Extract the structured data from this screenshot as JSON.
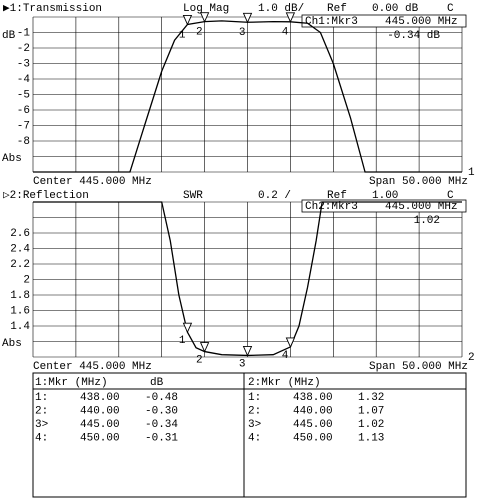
{
  "chart_data": [
    {
      "type": "line",
      "channel": "▶1:Transmission",
      "format": "Log Mag",
      "scale": "1.0 dB/",
      "ref_label": "Ref",
      "ref_value": "0.00 dB",
      "coupling": "C",
      "unit_label": "dB",
      "abs_label": "Abs",
      "marker_label": "Ch1:Mkr3",
      "marker_freq": "445.000 MHz",
      "marker_value": "-0.34 dB",
      "center": "Center 445.000 MHz",
      "span": "Span 50.000 MHz",
      "trace_id": "1",
      "xlim": [
        420,
        470
      ],
      "xticks": [
        420,
        425,
        430,
        435,
        440,
        445,
        450,
        455,
        460,
        465,
        470
      ],
      "ylim": [
        -10,
        0
      ],
      "yticks": [
        -1,
        -2,
        -3,
        -4,
        -5,
        -6,
        -7,
        -8
      ],
      "ygrid": [
        0,
        -1,
        -2,
        -3,
        -4,
        -5,
        -6,
        -7,
        -8,
        -9,
        -10
      ],
      "x": [
        420,
        431.3,
        433,
        435,
        436.5,
        438,
        440,
        442,
        445,
        448,
        450,
        452,
        453.5,
        455,
        457,
        458.7,
        470
      ],
      "values": [
        -10,
        -10,
        -7,
        -3.5,
        -1.5,
        -0.48,
        -0.3,
        -0.25,
        -0.34,
        -0.3,
        -0.31,
        -0.4,
        -1,
        -3,
        -6.5,
        -10,
        -10
      ],
      "color": "#000000",
      "markers": {
        "labels": [
          "1",
          "2",
          "3",
          "4"
        ],
        "x": [
          438,
          440,
          445,
          450
        ],
        "values": [
          -0.48,
          -0.3,
          -0.34,
          -0.31
        ]
      }
    },
    {
      "type": "line",
      "channel": "▷2:Reflection",
      "format": "SWR",
      "scale": "0.2 /",
      "ref_label": "Ref",
      "ref_value": "1.00",
      "coupling": "C",
      "abs_label": "Abs",
      "marker_label": "Ch2:Mkr3",
      "marker_freq": "445.000 MHz",
      "marker_value": "1.02",
      "center": "Center 445.000 MHz",
      "span": "Span 50.000 MHz",
      "trace_id": "2",
      "xlim": [
        420,
        470
      ],
      "xticks": [
        420,
        425,
        430,
        435,
        440,
        445,
        450,
        455,
        460,
        465,
        470
      ],
      "ylim": [
        1,
        3
      ],
      "yticks": [
        2.6,
        2.4,
        2.2,
        2,
        1.8,
        1.6,
        1.4
      ],
      "ygrid": [
        3,
        2.8,
        2.6,
        2.4,
        2.2,
        2,
        1.8,
        1.6,
        1.4,
        1.2,
        1
      ],
      "x": [
        420,
        435,
        436,
        437,
        438,
        439,
        440,
        442,
        445,
        448,
        450,
        451,
        452,
        453,
        453.7,
        470
      ],
      "values": [
        3,
        3,
        2.5,
        1.8,
        1.32,
        1.12,
        1.07,
        1.03,
        1.02,
        1.03,
        1.13,
        1.4,
        1.9,
        2.5,
        3,
        3
      ],
      "color": "#000000",
      "markers": {
        "labels": [
          "1",
          "2",
          "3",
          "4"
        ],
        "x": [
          438,
          440,
          445,
          450
        ],
        "values": [
          1.32,
          1.07,
          1.02,
          1.13
        ]
      }
    }
  ],
  "marker_table": {
    "ch1": {
      "title": "1:Mkr (MHz)",
      "unit": "dB",
      "rows": [
        [
          "1:",
          "438.00",
          "-0.48"
        ],
        [
          "2:",
          "440.00",
          "-0.30"
        ],
        [
          "3>",
          "445.00",
          "-0.34"
        ],
        [
          "4:",
          "450.00",
          "-0.31"
        ]
      ]
    },
    "ch2": {
      "title": "2:Mkr (MHz)",
      "rows": [
        [
          "1:",
          "438.00",
          "1.32"
        ],
        [
          "2:",
          "440.00",
          "1.07"
        ],
        [
          "3>",
          "445.00",
          "1.02"
        ],
        [
          "4:",
          "450.00",
          "1.13"
        ]
      ]
    }
  }
}
